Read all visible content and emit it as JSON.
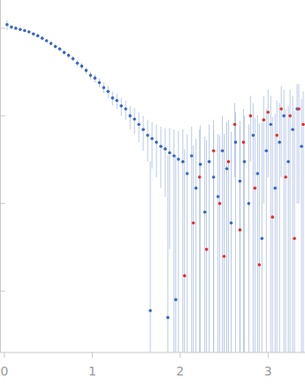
{
  "chart_data": {
    "type": "scatter",
    "log": "y",
    "tick_labels": "x",
    "grid": false,
    "xlim": [
      -0.05,
      3.42
    ],
    "ylim": [
      0.0002,
      2.1
    ],
    "xticks": [
      0,
      1,
      2,
      3
    ],
    "yticks": [
      0.001,
      0.01,
      0.1,
      1
    ],
    "series": [
      {
        "color": "#3a66c4",
        "marker": "circle",
        "x": [
          0.03,
          0.08,
          0.13,
          0.18,
          0.23,
          0.28,
          0.33,
          0.38,
          0.43,
          0.48,
          0.53,
          0.58,
          0.63,
          0.68,
          0.73,
          0.78,
          0.83,
          0.88,
          0.93,
          0.98,
          1.03,
          1.08,
          1.13,
          1.18,
          1.23,
          1.28,
          1.33,
          1.38,
          1.43,
          1.48,
          1.53,
          1.58,
          1.63,
          1.66,
          1.68,
          1.73,
          1.78,
          1.83,
          1.86,
          1.88,
          1.93,
          1.95,
          1.98,
          2.03,
          2.08,
          2.13,
          2.18,
          2.23,
          2.28,
          2.33,
          2.38,
          2.43,
          2.48,
          2.53,
          2.58,
          2.63,
          2.68,
          2.73,
          2.78,
          2.83,
          2.88,
          2.93,
          2.98,
          3.03,
          3.08,
          3.13,
          3.18,
          3.23,
          3.28,
          3.33,
          3.38
        ],
        "values": [
          1.1,
          1.03,
          1.0,
          0.97,
          0.94,
          0.91,
          0.86,
          0.82,
          0.77,
          0.72,
          0.67,
          0.62,
          0.58,
          0.53,
          0.49,
          0.45,
          0.4,
          0.37,
          0.33,
          0.29,
          0.27,
          0.24,
          0.21,
          0.19,
          0.16,
          0.15,
          0.13,
          0.12,
          0.1,
          0.092,
          0.08,
          0.07,
          0.06,
          0.0006,
          0.055,
          0.05,
          0.045,
          0.042,
          0.0005,
          0.038,
          0.035,
          0.0008,
          0.032,
          0.03,
          0.022,
          0.035,
          0.015,
          0.028,
          0.008,
          0.03,
          0.02,
          0.012,
          0.04,
          0.025,
          0.006,
          0.05,
          0.018,
          0.03,
          0.01,
          0.06,
          0.022,
          0.004,
          0.04,
          0.08,
          0.015,
          0.05,
          0.1,
          0.03,
          0.07,
          0.12,
          0.045
        ],
        "errors": [
          0.15,
          0.04,
          0.03,
          0.03,
          0.03,
          0.03,
          0.03,
          0.03,
          0.03,
          0.03,
          0.03,
          0.03,
          0.03,
          0.03,
          0.03,
          0.03,
          0.03,
          0.03,
          0.03,
          0.03,
          0.03,
          0.03,
          0.03,
          0.03,
          0.03,
          0.03,
          0.03,
          0.03,
          0.03,
          0.03,
          0.03,
          0.03,
          0.03,
          0.03,
          0.03,
          0.03,
          0.03,
          0.03,
          0.035,
          0.035,
          0.035,
          0.035,
          0.035,
          0.04,
          0.04,
          0.04,
          0.04,
          0.05,
          0.05,
          0.05,
          0.05,
          0.05,
          0.06,
          0.06,
          0.06,
          0.06,
          0.07,
          0.07,
          0.07,
          0.08,
          0.08,
          0.08,
          0.08,
          0.09,
          0.09,
          0.09,
          0.1,
          0.1,
          0.1,
          0.11,
          0.11
        ]
      },
      {
        "color": "#e0302a",
        "marker": "circle",
        "x": [
          2.05,
          2.15,
          2.22,
          2.3,
          2.38,
          2.45,
          2.5,
          2.55,
          2.62,
          2.68,
          2.72,
          2.8,
          2.85,
          2.9,
          2.95,
          3.0,
          3.05,
          3.1,
          3.15,
          3.2,
          3.25,
          3.3,
          3.35,
          3.4
        ],
        "values": [
          0.0015,
          0.006,
          0.02,
          0.003,
          0.04,
          0.01,
          0.0025,
          0.03,
          0.08,
          0.005,
          0.05,
          0.1,
          0.015,
          0.002,
          0.09,
          0.11,
          0.007,
          0.06,
          0.12,
          0.02,
          0.1,
          0.004,
          0.12,
          0.08
        ],
        "errors": [
          0.04,
          0.04,
          0.05,
          0.05,
          0.05,
          0.05,
          0.06,
          0.06,
          0.06,
          0.07,
          0.07,
          0.07,
          0.08,
          0.08,
          0.08,
          0.09,
          0.09,
          0.09,
          0.1,
          0.1,
          0.1,
          0.11,
          0.11,
          0.11
        ]
      }
    ]
  }
}
